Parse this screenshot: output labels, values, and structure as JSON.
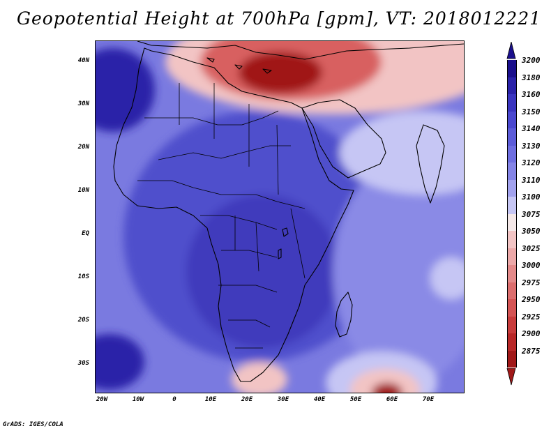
{
  "title": "Geopotential Height at 700hPa [gpm], VT: 2018012221",
  "latitude_labels": [
    "40N",
    "30N",
    "20N",
    "10N",
    "EQ",
    "10S",
    "20S",
    "30S"
  ],
  "longitude_labels": [
    "20W",
    "10W",
    "0",
    "10E",
    "20E",
    "30E",
    "40E",
    "50E",
    "60E",
    "70E"
  ],
  "colorbar": {
    "levels": [
      "3200",
      "3180",
      "3160",
      "3150",
      "3140",
      "3130",
      "3120",
      "3110",
      "3100",
      "3075",
      "3050",
      "3025",
      "3000",
      "2975",
      "2950",
      "2925",
      "2900",
      "2875"
    ],
    "colors": [
      "#1a0f8c",
      "#2a22a8",
      "#3a35bf",
      "#4a48cf",
      "#5c5cd8",
      "#6e6ee0",
      "#8484e6",
      "#a2a2ee",
      "#c6c6f4",
      "#f4e8e8",
      "#f2c4c4",
      "#eca8a8",
      "#e48a8a",
      "#dc6e6e",
      "#d45454",
      "#c83c3c",
      "#b82828",
      "#a01818"
    ],
    "top_arrow_color": "#1a0f8c",
    "bottom_arrow_color": "#a01818"
  },
  "footer": "GrADS: IGES/COLA",
  "field_colors": {
    "low_center": "#a01818",
    "low_mid": "#d86060",
    "low_edge": "#f2c4c4",
    "transition": "#c6c6f4",
    "mid": "#8a8ae6",
    "high": "#5050cc",
    "very_high": "#2a22a8"
  }
}
